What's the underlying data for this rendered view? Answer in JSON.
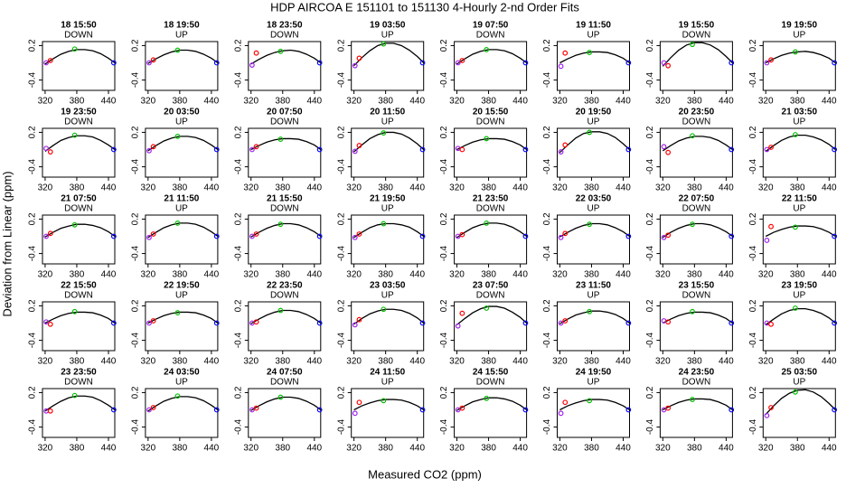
{
  "title": "HDP   AIRCOA E   151101 to 151130   4-Hourly 2-nd Order Fits",
  "x_label": "Measured CO2 (ppm)",
  "y_label": "Deviation from Linear (ppm)",
  "xlim": [
    315,
    452
  ],
  "ylim": [
    -0.58,
    0.27
  ],
  "xticks": [
    320,
    380,
    440
  ],
  "yticks": [
    -0.4,
    0.2
  ],
  "point_x": [
    322,
    330,
    376,
    450
  ],
  "point_colors": [
    "#a020f0",
    "#ff0000",
    "#00c000",
    "#0000ff"
  ],
  "curve_x": [
    320,
    335,
    350,
    365,
    380,
    395,
    410,
    425,
    440,
    452
  ],
  "panels": [
    {
      "time": "18 15:50",
      "dir": "DOWN",
      "points": [
        -0.1,
        -0.06,
        0.14,
        -0.1
      ],
      "curve": [
        -0.12,
        -0.03,
        0.05,
        0.1,
        0.13,
        0.13,
        0.11,
        0.06,
        -0.02,
        -0.1
      ]
    },
    {
      "time": "18 19:50",
      "dir": "UP",
      "points": [
        -0.1,
        -0.05,
        0.12,
        -0.1
      ],
      "curve": [
        -0.11,
        -0.03,
        0.04,
        0.09,
        0.12,
        0.12,
        0.1,
        0.05,
        -0.02,
        -0.1
      ]
    },
    {
      "time": "18 23:50",
      "dir": "DOWN",
      "points": [
        -0.14,
        0.07,
        0.1,
        -0.1
      ],
      "curve": [
        -0.12,
        -0.04,
        0.03,
        0.08,
        0.11,
        0.12,
        0.1,
        0.05,
        -0.02,
        -0.1
      ]
    },
    {
      "time": "19 03:50",
      "dir": "UP",
      "points": [
        -0.15,
        -0.02,
        0.23,
        -0.1
      ],
      "curve": [
        -0.15,
        -0.01,
        0.11,
        0.2,
        0.24,
        0.24,
        0.2,
        0.12,
        0.01,
        -0.1
      ]
    },
    {
      "time": "19 07:50",
      "dir": "DOWN",
      "points": [
        -0.1,
        -0.06,
        0.13,
        -0.1
      ],
      "curve": [
        -0.12,
        -0.03,
        0.05,
        0.1,
        0.13,
        0.13,
        0.11,
        0.06,
        -0.02,
        -0.1
      ]
    },
    {
      "time": "19 11:50",
      "dir": "UP",
      "points": [
        -0.16,
        0.07,
        0.08,
        -0.1
      ],
      "curve": [
        -0.1,
        -0.03,
        0.03,
        0.07,
        0.09,
        0.09,
        0.08,
        0.04,
        -0.02,
        -0.1
      ]
    },
    {
      "time": "19 15:50",
      "dir": "DOWN",
      "points": [
        -0.1,
        -0.15,
        0.22,
        -0.1
      ],
      "curve": [
        -0.16,
        -0.01,
        0.12,
        0.21,
        0.25,
        0.25,
        0.21,
        0.13,
        0.01,
        -0.1
      ]
    },
    {
      "time": "19 19:50",
      "dir": "UP",
      "points": [
        -0.1,
        -0.05,
        0.09,
        -0.1
      ],
      "curve": [
        -0.1,
        -0.03,
        0.03,
        0.07,
        0.09,
        0.1,
        0.08,
        0.04,
        -0.02,
        -0.1
      ]
    },
    {
      "time": "19 23:50",
      "dir": "DOWN",
      "points": [
        -0.08,
        -0.14,
        0.15,
        -0.1
      ],
      "curve": [
        -0.13,
        -0.03,
        0.06,
        0.11,
        0.14,
        0.14,
        0.12,
        0.06,
        -0.02,
        -0.1
      ]
    },
    {
      "time": "20 03:50",
      "dir": "UP",
      "points": [
        -0.12,
        -0.05,
        0.13,
        -0.1
      ],
      "curve": [
        -0.12,
        -0.03,
        0.05,
        0.1,
        0.13,
        0.13,
        0.11,
        0.06,
        -0.02,
        -0.1
      ]
    },
    {
      "time": "20 07:50",
      "dir": "DOWN",
      "points": [
        -0.1,
        -0.05,
        0.08,
        -0.1
      ],
      "curve": [
        -0.1,
        -0.03,
        0.03,
        0.07,
        0.09,
        0.09,
        0.08,
        0.04,
        -0.02,
        -0.1
      ]
    },
    {
      "time": "20 11:50",
      "dir": "UP",
      "points": [
        -0.13,
        -0.03,
        0.19,
        -0.1
      ],
      "curve": [
        -0.14,
        -0.02,
        0.09,
        0.16,
        0.2,
        0.2,
        0.17,
        0.1,
        0,
        -0.1
      ]
    },
    {
      "time": "20 15:50",
      "dir": "DOWN",
      "points": [
        -0.08,
        -0.1,
        0.09,
        -0.1
      ],
      "curve": [
        -0.1,
        -0.03,
        0.03,
        0.07,
        0.09,
        0.09,
        0.08,
        0.04,
        -0.02,
        -0.1
      ]
    },
    {
      "time": "20 19:50",
      "dir": "UP",
      "points": [
        -0.14,
        -0.02,
        0.2,
        -0.1
      ],
      "curve": [
        -0.15,
        -0.02,
        0.1,
        0.18,
        0.21,
        0.21,
        0.18,
        0.11,
        0,
        -0.1
      ]
    },
    {
      "time": "20 23:50",
      "dir": "DOWN",
      "points": [
        -0.05,
        -0.15,
        0.14,
        -0.1
      ],
      "curve": [
        -0.12,
        -0.03,
        0.05,
        0.1,
        0.13,
        0.13,
        0.11,
        0.06,
        -0.02,
        -0.1
      ]
    },
    {
      "time": "21 03:50",
      "dir": "UP",
      "points": [
        -0.1,
        -0.06,
        0.16,
        -0.1
      ],
      "curve": [
        -0.13,
        -0.03,
        0.06,
        0.12,
        0.15,
        0.15,
        0.12,
        0.07,
        -0.01,
        -0.1
      ]
    },
    {
      "time": "21 07:50",
      "dir": "DOWN",
      "points": [
        -0.1,
        -0.05,
        0.1,
        -0.1
      ],
      "curve": [
        -0.11,
        -0.03,
        0.04,
        0.08,
        0.11,
        0.11,
        0.09,
        0.05,
        -0.02,
        -0.1
      ]
    },
    {
      "time": "21 11:50",
      "dir": "UP",
      "points": [
        -0.12,
        -0.06,
        0.13,
        -0.1
      ],
      "curve": [
        -0.12,
        -0.03,
        0.05,
        0.1,
        0.13,
        0.13,
        0.11,
        0.06,
        -0.02,
        -0.1
      ]
    },
    {
      "time": "21 15:50",
      "dir": "DOWN",
      "points": [
        -0.1,
        -0.06,
        0.11,
        -0.1
      ],
      "curve": [
        -0.11,
        -0.03,
        0.04,
        0.09,
        0.12,
        0.12,
        0.1,
        0.05,
        -0.02,
        -0.1
      ]
    },
    {
      "time": "21 19:50",
      "dir": "UP",
      "points": [
        -0.12,
        -0.06,
        0.12,
        -0.1
      ],
      "curve": [
        -0.12,
        -0.03,
        0.05,
        0.1,
        0.12,
        0.12,
        0.1,
        0.06,
        -0.02,
        -0.1
      ]
    },
    {
      "time": "21 23:50",
      "dir": "DOWN",
      "points": [
        -0.1,
        -0.07,
        0.13,
        -0.1
      ],
      "curve": [
        -0.12,
        -0.03,
        0.05,
        0.1,
        0.13,
        0.13,
        0.11,
        0.06,
        -0.02,
        -0.1
      ]
    },
    {
      "time": "22 03:50",
      "dir": "UP",
      "points": [
        -0.12,
        -0.05,
        0.11,
        -0.1
      ],
      "curve": [
        -0.11,
        -0.03,
        0.04,
        0.09,
        0.12,
        0.12,
        0.1,
        0.05,
        -0.02,
        -0.1
      ]
    },
    {
      "time": "22 07:50",
      "dir": "DOWN",
      "points": [
        -0.12,
        -0.08,
        0.11,
        -0.1
      ],
      "curve": [
        -0.12,
        -0.03,
        0.04,
        0.09,
        0.12,
        0.12,
        0.1,
        0.05,
        -0.02,
        -0.1
      ]
    },
    {
      "time": "22 11:50",
      "dir": "UP",
      "points": [
        -0.17,
        0.07,
        0.06,
        -0.1
      ],
      "curve": [
        -0.1,
        -0.03,
        0.02,
        0.06,
        0.08,
        0.08,
        0.07,
        0.03,
        -0.03,
        -0.1
      ]
    },
    {
      "time": "22 15:50",
      "dir": "DOWN",
      "points": [
        -0.08,
        -0.12,
        0.1,
        -0.1
      ],
      "curve": [
        -0.1,
        -0.03,
        0.03,
        0.07,
        0.09,
        0.09,
        0.08,
        0.04,
        -0.02,
        -0.1
      ]
    },
    {
      "time": "22 19:50",
      "dir": "UP",
      "points": [
        -0.1,
        -0.06,
        0.08,
        -0.1
      ],
      "curve": [
        -0.1,
        -0.03,
        0.03,
        0.07,
        0.09,
        0.09,
        0.08,
        0.04,
        -0.02,
        -0.1
      ]
    },
    {
      "time": "22 23:50",
      "dir": "DOWN",
      "points": [
        -0.1,
        -0.08,
        0.12,
        -0.1
      ],
      "curve": [
        -0.11,
        -0.03,
        0.04,
        0.09,
        0.12,
        0.12,
        0.1,
        0.05,
        -0.02,
        -0.1
      ]
    },
    {
      "time": "23 03:50",
      "dir": "UP",
      "points": [
        -0.13,
        -0.04,
        0.14,
        -0.1
      ],
      "curve": [
        -0.12,
        -0.02,
        0.06,
        0.11,
        0.14,
        0.14,
        0.12,
        0.07,
        -0.01,
        -0.1
      ]
    },
    {
      "time": "23 07:50",
      "dir": "DOWN",
      "points": [
        -0.15,
        0.07,
        0.16,
        -0.1
      ],
      "curve": [
        -0.13,
        -0.02,
        0.08,
        0.15,
        0.19,
        0.19,
        0.16,
        0.09,
        0,
        -0.1
      ]
    },
    {
      "time": "23 11:50",
      "dir": "UP",
      "points": [
        -0.1,
        -0.06,
        0.1,
        -0.1
      ],
      "curve": [
        -0.11,
        -0.03,
        0.04,
        0.08,
        0.11,
        0.11,
        0.09,
        0.05,
        -0.02,
        -0.1
      ]
    },
    {
      "time": "23 15:50",
      "dir": "DOWN",
      "points": [
        -0.06,
        -0.08,
        0.1,
        -0.1
      ],
      "curve": [
        -0.1,
        -0.03,
        0.03,
        0.07,
        0.09,
        0.09,
        0.08,
        0.04,
        -0.02,
        -0.1
      ]
    },
    {
      "time": "23 19:50",
      "dir": "UP",
      "points": [
        -0.1,
        -0.12,
        0.16,
        -0.1
      ],
      "curve": [
        -0.13,
        -0.03,
        0.06,
        0.12,
        0.15,
        0.15,
        0.12,
        0.07,
        -0.01,
        -0.1
      ]
    },
    {
      "time": "23 23:50",
      "dir": "DOWN",
      "points": [
        -0.12,
        -0.12,
        0.15,
        -0.1
      ],
      "curve": [
        -0.12,
        -0.03,
        0.05,
        0.11,
        0.14,
        0.14,
        0.12,
        0.06,
        -0.02,
        -0.1
      ]
    },
    {
      "time": "24 03:50",
      "dir": "UP",
      "points": [
        -0.1,
        -0.06,
        0.14,
        -0.1
      ],
      "curve": [
        -0.12,
        -0.03,
        0.05,
        0.1,
        0.13,
        0.13,
        0.11,
        0.06,
        -0.02,
        -0.1
      ]
    },
    {
      "time": "24 07:50",
      "dir": "DOWN",
      "points": [
        -0.1,
        -0.07,
        0.12,
        -0.1
      ],
      "curve": [
        -0.11,
        -0.03,
        0.04,
        0.09,
        0.12,
        0.12,
        0.1,
        0.05,
        -0.02,
        -0.1
      ]
    },
    {
      "time": "24 11:50",
      "dir": "UP",
      "points": [
        -0.16,
        0.03,
        0.06,
        -0.1
      ],
      "curve": [
        -0.1,
        -0.03,
        0.02,
        0.06,
        0.08,
        0.08,
        0.07,
        0.03,
        -0.03,
        -0.1
      ]
    },
    {
      "time": "24 15:50",
      "dir": "DOWN",
      "points": [
        -0.1,
        -0.07,
        0.1,
        -0.1
      ],
      "curve": [
        -0.11,
        -0.03,
        0.04,
        0.08,
        0.11,
        0.11,
        0.09,
        0.05,
        -0.02,
        -0.1
      ]
    },
    {
      "time": "24 19:50",
      "dir": "UP",
      "points": [
        -0.16,
        0.03,
        0.06,
        -0.1
      ],
      "curve": [
        -0.1,
        -0.03,
        0.02,
        0.06,
        0.08,
        0.08,
        0.07,
        0.03,
        -0.03,
        -0.1
      ]
    },
    {
      "time": "24 23:50",
      "dir": "DOWN",
      "points": [
        -0.1,
        -0.07,
        0.08,
        -0.1
      ],
      "curve": [
        -0.1,
        -0.03,
        0.03,
        0.07,
        0.09,
        0.09,
        0.08,
        0.04,
        -0.02,
        -0.1
      ]
    },
    {
      "time": "25 03:50",
      "dir": "UP",
      "points": [
        -0.2,
        -0.06,
        0.21,
        -0.1
      ],
      "curve": [
        -0.18,
        -0.03,
        0.1,
        0.19,
        0.24,
        0.25,
        0.21,
        0.13,
        0.01,
        -0.1
      ]
    }
  ]
}
